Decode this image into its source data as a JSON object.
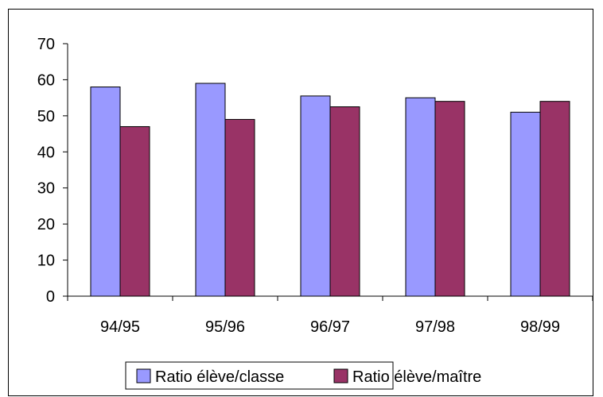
{
  "chart_data": {
    "type": "bar",
    "title": "",
    "xlabel": "",
    "ylabel": "",
    "categories": [
      "94/95",
      "95/96",
      "96/97",
      "97/98",
      "98/99"
    ],
    "series": [
      {
        "name": "Ratio élève/classe",
        "values": [
          58,
          59,
          55.5,
          55,
          51
        ],
        "color": "#9999ff"
      },
      {
        "name": "Ratio élève/maître",
        "values": [
          47,
          49,
          52.5,
          54,
          54
        ],
        "color": "#993366"
      }
    ],
    "ylim": [
      0,
      70
    ],
    "yticks": [
      0,
      10,
      20,
      30,
      40,
      50,
      60,
      70
    ],
    "grid": false,
    "legend_position": "bottom"
  }
}
